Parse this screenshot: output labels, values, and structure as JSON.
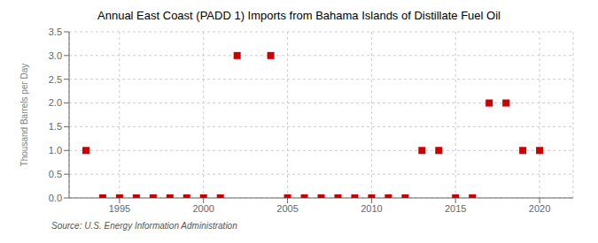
{
  "chart_data": {
    "type": "scatter",
    "title": "Annual East Coast (PADD 1) Imports from Bahama Islands of Distillate Fuel Oil",
    "ylabel": "Thousand Barrels per Day",
    "annotations": [
      "Source: U.S. Energy Information Administration"
    ],
    "x": [
      1993,
      1994,
      1995,
      1996,
      1997,
      1998,
      1999,
      2000,
      2001,
      2002,
      2004,
      2005,
      2006,
      2007,
      2008,
      2009,
      2010,
      2011,
      2012,
      2013,
      2014,
      2015,
      2016,
      2017,
      2018,
      2019,
      2020
    ],
    "values": [
      1.0,
      0.0,
      0.0,
      0.0,
      0.0,
      0.0,
      0.0,
      0.0,
      0.0,
      3.0,
      3.0,
      0.0,
      0.0,
      0.0,
      0.0,
      0.0,
      0.0,
      0.0,
      0.0,
      1.0,
      1.0,
      0.0,
      0.0,
      2.0,
      2.0,
      1.0,
      1.0
    ],
    "color": "#cc0000",
    "marker": "square",
    "xlim": [
      1992,
      2022
    ],
    "ylim": [
      0.0,
      3.5
    ],
    "xticks": [
      1995,
      2000,
      2005,
      2010,
      2015,
      2020
    ],
    "yticks": [
      {
        "value": 0,
        "label": "0.0"
      },
      0.5,
      {
        "value": 1,
        "label": "1.0"
      },
      1.5,
      {
        "value": 2,
        "label": "2.0"
      },
      2.5,
      {
        "value": 3,
        "label": "3.0"
      },
      3.5
    ],
    "grid": true
  }
}
